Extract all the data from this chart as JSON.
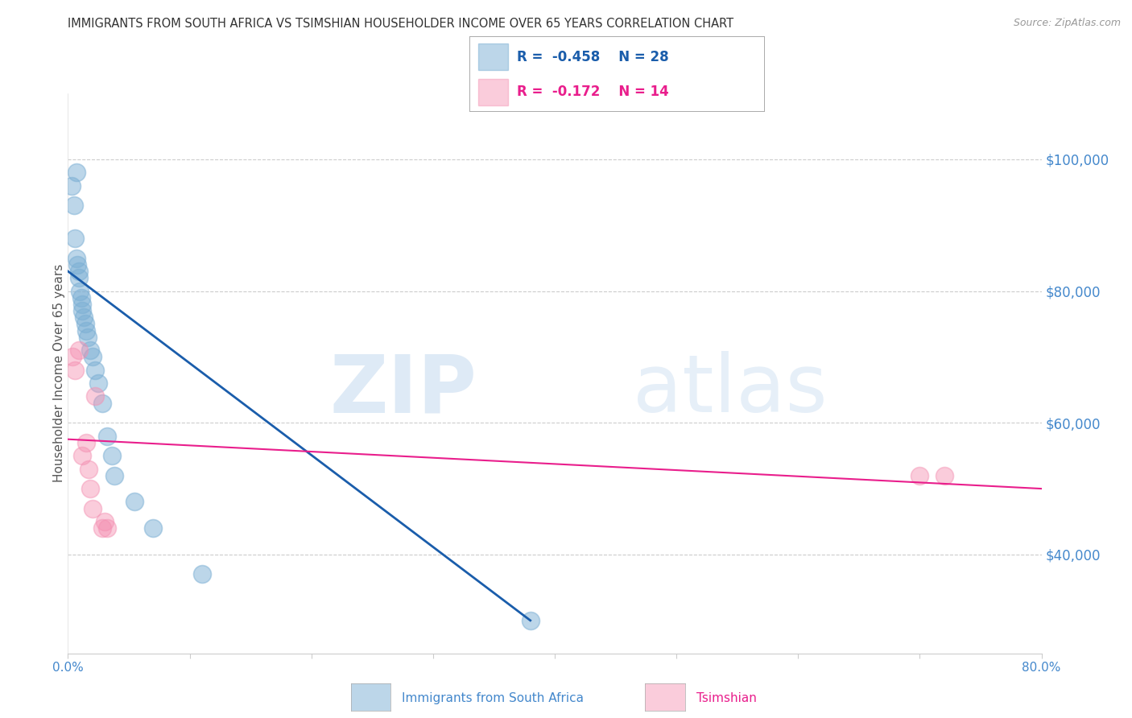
{
  "title": "IMMIGRANTS FROM SOUTH AFRICA VS TSIMSHIAN HOUSEHOLDER INCOME OVER 65 YEARS CORRELATION CHART",
  "source": "Source: ZipAtlas.com",
  "ylabel": "Householder Income Over 65 years",
  "legend_label_blue": "Immigrants from South Africa",
  "legend_label_pink": "Tsimshian",
  "R_blue": -0.458,
  "N_blue": 28,
  "R_pink": -0.172,
  "N_pink": 14,
  "xlim": [
    0.0,
    0.8
  ],
  "ylim": [
    25000,
    110000
  ],
  "yticks": [
    40000,
    60000,
    80000,
    100000
  ],
  "ytick_labels": [
    "$40,000",
    "$60,000",
    "$80,000",
    "$100,000"
  ],
  "xticks": [
    0.0,
    0.1,
    0.2,
    0.3,
    0.4,
    0.5,
    0.6,
    0.7,
    0.8
  ],
  "xtick_labels": [
    "0.0%",
    "",
    "",
    "",
    "",
    "",
    "",
    "",
    "80.0%"
  ],
  "blue_scatter_x": [
    0.003,
    0.005,
    0.006,
    0.007,
    0.007,
    0.008,
    0.009,
    0.009,
    0.01,
    0.011,
    0.012,
    0.012,
    0.013,
    0.014,
    0.015,
    0.016,
    0.018,
    0.02,
    0.022,
    0.025,
    0.028,
    0.032,
    0.036,
    0.038,
    0.055,
    0.07,
    0.11,
    0.38
  ],
  "blue_scatter_y": [
    96000,
    93000,
    88000,
    98000,
    85000,
    84000,
    83000,
    82000,
    80000,
    79000,
    78000,
    77000,
    76000,
    75000,
    74000,
    73000,
    71000,
    70000,
    68000,
    66000,
    63000,
    58000,
    55000,
    52000,
    48000,
    44000,
    37000,
    30000
  ],
  "pink_scatter_x": [
    0.004,
    0.006,
    0.009,
    0.012,
    0.015,
    0.017,
    0.018,
    0.02,
    0.022,
    0.028,
    0.03,
    0.032,
    0.7,
    0.72
  ],
  "pink_scatter_y": [
    70000,
    68000,
    71000,
    55000,
    57000,
    53000,
    50000,
    47000,
    64000,
    44000,
    45000,
    44000,
    52000,
    52000
  ],
  "blue_line_x0": 0.0,
  "blue_line_y0": 83000,
  "blue_line_x1": 0.38,
  "blue_line_y1": 30000,
  "pink_line_x0": 0.0,
  "pink_line_y0": 57500,
  "pink_line_x1": 0.8,
  "pink_line_y1": 50000,
  "blue_scatter_color": "#7BAFD4",
  "pink_scatter_color": "#F48FB1",
  "blue_line_color": "#1A5DAB",
  "pink_line_color": "#E91E8C",
  "watermark_zip": "ZIP",
  "watermark_atlas": "atlas",
  "background_color": "#FFFFFF",
  "grid_color": "#CCCCCC",
  "title_color": "#333333",
  "ylabel_color": "#555555",
  "right_tick_color": "#4488CC",
  "source_color": "#999999",
  "legend_text_blue_color": "#1A5DAB",
  "legend_text_pink_color": "#E91E8C",
  "bottom_label_color_blue": "#4488CC",
  "bottom_label_color_pink": "#E91E8C"
}
